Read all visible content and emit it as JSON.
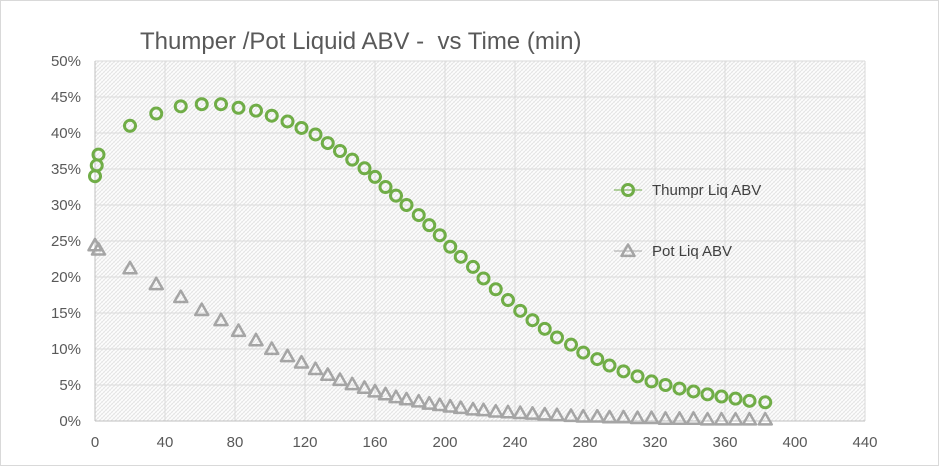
{
  "chart_data": {
    "type": "scatter",
    "title": "Thumper /Pot Liquid ABV -  vs Time (min)",
    "xlabel": "",
    "ylabel": "",
    "xlim": [
      0,
      440
    ],
    "ylim": [
      0,
      0.5
    ],
    "x_ticks": [
      "0",
      "40",
      "80",
      "120",
      "160",
      "200",
      "240",
      "280",
      "320",
      "360",
      "400",
      "440"
    ],
    "y_ticks": [
      "0%",
      "5%",
      "10%",
      "15%",
      "20%",
      "25%",
      "30%",
      "35%",
      "40%",
      "45%",
      "50%"
    ],
    "grid": true,
    "legend_position": "right",
    "series": [
      {
        "name": "Thumpr Liq ABV",
        "marker": "circle",
        "color": "#70ad47",
        "points": [
          [
            0,
            0.34
          ],
          [
            1,
            0.355
          ],
          [
            2,
            0.37
          ],
          [
            20,
            0.41
          ],
          [
            35,
            0.427
          ],
          [
            49,
            0.437
          ],
          [
            61,
            0.44
          ],
          [
            72,
            0.44
          ],
          [
            82,
            0.435
          ],
          [
            92,
            0.431
          ],
          [
            101,
            0.424
          ],
          [
            110,
            0.416
          ],
          [
            118,
            0.407
          ],
          [
            126,
            0.398
          ],
          [
            133,
            0.386
          ],
          [
            140,
            0.375
          ],
          [
            147,
            0.363
          ],
          [
            154,
            0.351
          ],
          [
            160,
            0.339
          ],
          [
            166,
            0.325
          ],
          [
            172,
            0.313
          ],
          [
            178,
            0.3
          ],
          [
            185,
            0.286
          ],
          [
            191,
            0.272
          ],
          [
            197,
            0.258
          ],
          [
            203,
            0.242
          ],
          [
            209,
            0.228
          ],
          [
            216,
            0.214
          ],
          [
            222,
            0.198
          ],
          [
            229,
            0.183
          ],
          [
            236,
            0.168
          ],
          [
            243,
            0.153
          ],
          [
            250,
            0.14
          ],
          [
            257,
            0.128
          ],
          [
            264,
            0.116
          ],
          [
            272,
            0.106
          ],
          [
            279,
            0.095
          ],
          [
            287,
            0.086
          ],
          [
            294,
            0.077
          ],
          [
            302,
            0.069
          ],
          [
            310,
            0.062
          ],
          [
            318,
            0.055
          ],
          [
            326,
            0.05
          ],
          [
            334,
            0.045
          ],
          [
            342,
            0.041
          ],
          [
            350,
            0.037
          ],
          [
            358,
            0.034
          ],
          [
            366,
            0.031
          ],
          [
            374,
            0.028
          ],
          [
            383,
            0.026
          ]
        ]
      },
      {
        "name": "Pot Liq ABV",
        "marker": "triangle",
        "color": "#a5a5a5",
        "points": [
          [
            0,
            0.244
          ],
          [
            2,
            0.238
          ],
          [
            20,
            0.212
          ],
          [
            35,
            0.19
          ],
          [
            49,
            0.172
          ],
          [
            61,
            0.154
          ],
          [
            72,
            0.14
          ],
          [
            82,
            0.125
          ],
          [
            92,
            0.112
          ],
          [
            101,
            0.1
          ],
          [
            110,
            0.09
          ],
          [
            118,
            0.081
          ],
          [
            126,
            0.072
          ],
          [
            133,
            0.064
          ],
          [
            140,
            0.057
          ],
          [
            147,
            0.051
          ],
          [
            154,
            0.046
          ],
          [
            160,
            0.041
          ],
          [
            166,
            0.037
          ],
          [
            172,
            0.033
          ],
          [
            178,
            0.03
          ],
          [
            185,
            0.027
          ],
          [
            191,
            0.024
          ],
          [
            197,
            0.022
          ],
          [
            203,
            0.02
          ],
          [
            209,
            0.018
          ],
          [
            216,
            0.016
          ],
          [
            222,
            0.015
          ],
          [
            229,
            0.013
          ],
          [
            236,
            0.012
          ],
          [
            243,
            0.011
          ],
          [
            250,
            0.01
          ],
          [
            257,
            0.009
          ],
          [
            264,
            0.008
          ],
          [
            272,
            0.007
          ],
          [
            279,
            0.006
          ],
          [
            287,
            0.006
          ],
          [
            294,
            0.005
          ],
          [
            302,
            0.005
          ],
          [
            310,
            0.004
          ],
          [
            318,
            0.004
          ],
          [
            326,
            0.003
          ],
          [
            334,
            0.003
          ],
          [
            342,
            0.003
          ],
          [
            350,
            0.002
          ],
          [
            358,
            0.002
          ],
          [
            366,
            0.002
          ],
          [
            374,
            0.002
          ],
          [
            383,
            0.002
          ]
        ]
      }
    ]
  }
}
